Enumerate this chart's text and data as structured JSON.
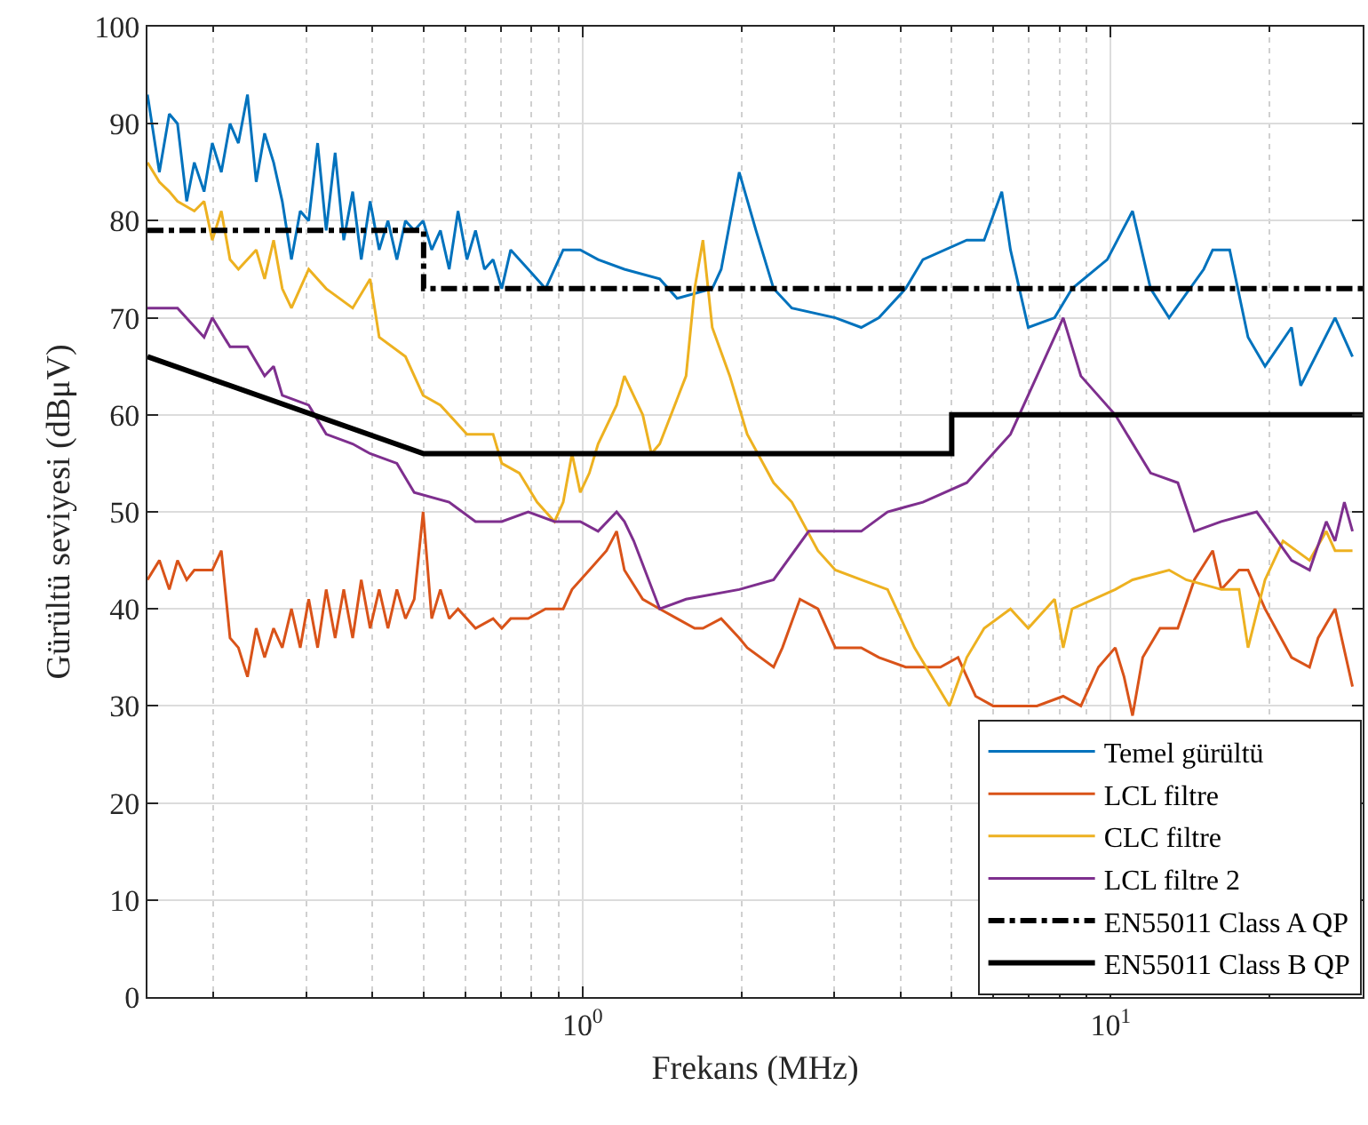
{
  "chart_data": {
    "type": "line",
    "xlabel": "Frekans (MHz)",
    "ylabel": "Gürültü seviyesi (dBμV)",
    "log": "x",
    "xlim": [
      0.15,
      30
    ],
    "xticks": [
      {
        "value": 1,
        "label": "10$^{0}$"
      },
      {
        "value": 10,
        "label": "10$^{1}$"
      }
    ],
    "ylim": [
      0,
      100
    ],
    "yticks": [
      0,
      10,
      20,
      30,
      40,
      50,
      60,
      70,
      80,
      90,
      100
    ],
    "grid": true,
    "legend": "bottom right",
    "marker": "none",
    "series": [
      {
        "name": "Temel gürültü",
        "color": "#0072bd",
        "line_style": "solid",
        "x": [
          0.15,
          0.158,
          0.165,
          0.171,
          0.178,
          0.184,
          0.192,
          0.199,
          0.207,
          0.215,
          0.223,
          0.232,
          0.241,
          0.25,
          0.26,
          0.27,
          0.281,
          0.292,
          0.303,
          0.315,
          0.327,
          0.34,
          0.353,
          0.367,
          0.381,
          0.396,
          0.412,
          0.428,
          0.445,
          0.462,
          0.48,
          0.499,
          0.518,
          0.538,
          0.559,
          0.581,
          0.604,
          0.627,
          0.652,
          0.677,
          0.703,
          0.731,
          0.789,
          0.851,
          0.919,
          0.99,
          1.07,
          1.2,
          1.4,
          1.51,
          1.76,
          1.83,
          1.98,
          2.13,
          2.3,
          2.49,
          3.01,
          3.37,
          3.64,
          4.09,
          4.41,
          5.34,
          5.76,
          6.22,
          6.46,
          6.98,
          7.83,
          8.45,
          9.85,
          11.0,
          11.9,
          12.9,
          15.0,
          15.6,
          16.8,
          18.2,
          19.6,
          22.0,
          22.9,
          26.6,
          28.7
        ],
        "values": [
          93,
          85,
          91,
          90,
          82,
          86,
          83,
          88,
          85,
          90,
          88,
          93,
          84,
          89,
          86,
          82,
          76,
          81,
          80,
          88,
          79,
          87,
          78,
          83,
          76,
          82,
          77,
          80,
          76,
          80,
          79,
          80,
          77,
          79,
          75,
          81,
          76,
          79,
          75,
          76,
          73,
          77,
          75,
          73,
          77,
          77,
          76,
          75,
          74,
          72,
          73,
          75,
          85,
          79,
          73,
          71,
          70,
          69,
          70,
          73,
          76,
          78,
          78,
          83,
          77,
          69,
          70,
          73,
          76,
          81,
          73,
          70,
          75,
          77,
          77,
          68,
          65,
          69,
          63,
          70,
          66
        ]
      },
      {
        "name": "LCL filtre",
        "color": "#d95319",
        "line_style": "solid",
        "x": [
          0.15,
          0.158,
          0.165,
          0.171,
          0.178,
          0.184,
          0.199,
          0.207,
          0.215,
          0.223,
          0.232,
          0.241,
          0.25,
          0.26,
          0.27,
          0.281,
          0.292,
          0.303,
          0.315,
          0.327,
          0.34,
          0.353,
          0.367,
          0.381,
          0.396,
          0.412,
          0.428,
          0.445,
          0.462,
          0.48,
          0.499,
          0.518,
          0.538,
          0.559,
          0.581,
          0.627,
          0.677,
          0.703,
          0.731,
          0.789,
          0.851,
          0.919,
          0.955,
          1.03,
          1.11,
          1.16,
          1.2,
          1.3,
          1.4,
          1.51,
          1.63,
          1.69,
          1.83,
          1.98,
          2.05,
          2.3,
          2.39,
          2.58,
          2.79,
          3.01,
          3.37,
          3.64,
          4.09,
          4.76,
          5.14,
          5.55,
          5.99,
          6.46,
          7.25,
          8.13,
          8.78,
          9.48,
          10.2,
          10.6,
          11.0,
          11.5,
          12.4,
          13.4,
          14.4,
          15.6,
          16.2,
          17.5,
          18.2,
          19.6,
          22.0,
          23.8,
          24.7,
          26.6,
          28.7
        ],
        "values": [
          43,
          45,
          42,
          45,
          43,
          44,
          44,
          46,
          37,
          36,
          33,
          38,
          35,
          38,
          36,
          40,
          36,
          41,
          36,
          42,
          37,
          42,
          37,
          43,
          38,
          42,
          38,
          42,
          39,
          41,
          50,
          39,
          42,
          39,
          40,
          38,
          39,
          38,
          39,
          39,
          40,
          40,
          42,
          44,
          46,
          48,
          44,
          41,
          40,
          39,
          38,
          38,
          39,
          37,
          36,
          34,
          36,
          41,
          40,
          36,
          36,
          35,
          34,
          34,
          35,
          31,
          30,
          30,
          30,
          31,
          30,
          34,
          36,
          33,
          29,
          35,
          38,
          38,
          43,
          46,
          42,
          44,
          44,
          40,
          35,
          34,
          37,
          40,
          32
        ]
      },
      {
        "name": "CLC filtre",
        "color": "#edb120",
        "line_style": "solid",
        "x": [
          0.15,
          0.158,
          0.165,
          0.171,
          0.184,
          0.192,
          0.199,
          0.207,
          0.215,
          0.223,
          0.241,
          0.25,
          0.26,
          0.27,
          0.281,
          0.303,
          0.327,
          0.367,
          0.396,
          0.412,
          0.462,
          0.499,
          0.538,
          0.604,
          0.677,
          0.703,
          0.759,
          0.82,
          0.885,
          0.919,
          0.955,
          0.99,
          1.03,
          1.07,
          1.16,
          1.2,
          1.3,
          1.35,
          1.4,
          1.57,
          1.63,
          1.69,
          1.76,
          1.9,
          2.05,
          2.3,
          2.49,
          2.79,
          3.01,
          3.37,
          3.78,
          4.25,
          4.95,
          5.34,
          5.76,
          6.46,
          6.98,
          7.83,
          8.13,
          8.45,
          10.2,
          11.0,
          12.9,
          13.9,
          16.2,
          17.5,
          18.2,
          19.6,
          21.2,
          23.8,
          25.6,
          26.6,
          28.7
        ],
        "values": [
          86,
          84,
          83,
          82,
          81,
          82,
          78,
          81,
          76,
          75,
          77,
          74,
          78,
          73,
          71,
          75,
          73,
          71,
          74,
          68,
          66,
          62,
          61,
          58,
          58,
          55,
          54,
          51,
          49,
          51,
          56,
          52,
          54,
          57,
          61,
          64,
          60,
          56,
          57,
          64,
          73,
          78,
          69,
          64,
          58,
          53,
          51,
          46,
          44,
          43,
          42,
          36,
          30,
          35,
          38,
          40,
          38,
          41,
          36,
          40,
          42,
          43,
          44,
          43,
          42,
          42,
          36,
          43,
          47,
          45,
          48,
          46,
          46
        ]
      },
      {
        "name": "LCL filtre 2",
        "color": "#7e2f8e",
        "line_style": "solid",
        "x": [
          0.15,
          0.171,
          0.192,
          0.199,
          0.215,
          0.232,
          0.25,
          0.26,
          0.27,
          0.303,
          0.327,
          0.367,
          0.396,
          0.445,
          0.48,
          0.559,
          0.627,
          0.703,
          0.789,
          0.885,
          0.99,
          1.07,
          1.16,
          1.2,
          1.25,
          1.4,
          1.57,
          1.98,
          2.3,
          2.68,
          3.37,
          3.78,
          4.41,
          5.34,
          5.76,
          6.46,
          7.25,
          8.13,
          8.78,
          10.2,
          11.9,
          13.4,
          14.4,
          16.2,
          18.9,
          22.0,
          23.8,
          25.6,
          26.6,
          27.7,
          28.7
        ],
        "values": [
          71,
          71,
          68,
          70,
          67,
          67,
          64,
          65,
          62,
          61,
          58,
          57,
          56,
          55,
          52,
          51,
          49,
          49,
          50,
          49,
          49,
          48,
          50,
          49,
          47,
          40,
          41,
          42,
          43,
          48,
          48,
          50,
          51,
          53,
          55,
          58,
          64,
          70,
          64,
          60,
          54,
          53,
          48,
          49,
          50,
          45,
          44,
          49,
          47,
          51,
          48
        ]
      },
      {
        "name": "EN55011 Class A QP",
        "color": "#000000",
        "line_style": "dashdot",
        "x": [
          0.15,
          0.5,
          0.5,
          30
        ],
        "values": [
          79,
          79,
          73,
          73
        ]
      },
      {
        "name": "EN55011 Class B QP",
        "color": "#000000",
        "line_style": "solid",
        "x": [
          0.15,
          0.5,
          5,
          5,
          30
        ],
        "values": [
          66,
          56,
          56,
          60,
          60
        ]
      }
    ]
  }
}
